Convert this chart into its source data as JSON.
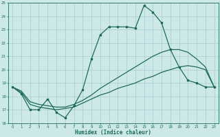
{
  "xlabel": "Humidex (Indice chaleur)",
  "xlim": [
    -0.5,
    23.5
  ],
  "ylim": [
    16,
    25
  ],
  "xticks": [
    0,
    1,
    2,
    3,
    4,
    5,
    6,
    7,
    8,
    9,
    10,
    11,
    12,
    13,
    14,
    15,
    16,
    17,
    18,
    19,
    20,
    21,
    22,
    23
  ],
  "yticks": [
    16,
    17,
    18,
    19,
    20,
    21,
    22,
    23,
    24,
    25
  ],
  "bg_color": "#cce8e8",
  "line_color": "#1a6b5a",
  "grid_color": "#a8cccc",
  "line1_x": [
    0,
    1,
    2,
    3,
    4,
    5,
    6,
    7,
    8,
    9,
    10,
    11,
    12,
    13,
    14,
    15,
    16,
    17,
    18,
    19,
    20,
    21,
    22,
    23
  ],
  "line1_y": [
    18.7,
    18.2,
    17.0,
    17.0,
    17.8,
    16.8,
    16.4,
    17.3,
    18.5,
    20.8,
    22.6,
    23.2,
    23.2,
    23.2,
    23.1,
    24.8,
    24.3,
    23.5,
    21.5,
    20.2,
    19.2,
    19.0,
    18.7,
    18.7
  ],
  "line2_x": [
    0,
    1,
    2,
    3,
    4,
    5,
    6,
    7,
    8,
    9,
    10,
    11,
    12,
    13,
    14,
    15,
    16,
    17,
    18,
    19,
    20,
    21,
    22,
    23
  ],
  "line2_y": [
    18.7,
    18.4,
    17.6,
    17.4,
    17.3,
    17.2,
    17.2,
    17.4,
    17.7,
    18.1,
    18.6,
    19.0,
    19.4,
    19.8,
    20.2,
    20.6,
    21.0,
    21.3,
    21.5,
    21.5,
    21.3,
    20.8,
    20.2,
    18.7
  ],
  "line3_x": [
    0,
    1,
    2,
    3,
    4,
    5,
    6,
    7,
    8,
    9,
    10,
    11,
    12,
    13,
    14,
    15,
    16,
    17,
    18,
    19,
    20,
    21,
    22,
    23
  ],
  "line3_y": [
    18.7,
    18.3,
    17.4,
    17.2,
    17.1,
    17.0,
    17.1,
    17.2,
    17.5,
    17.8,
    18.1,
    18.3,
    18.6,
    18.8,
    19.0,
    19.3,
    19.5,
    19.8,
    20.0,
    20.2,
    20.3,
    20.2,
    20.0,
    18.7
  ],
  "marker_size": 2.0,
  "linewidth": 0.9
}
